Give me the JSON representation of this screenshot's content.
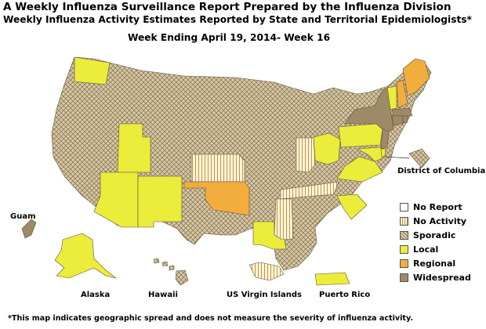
{
  "header": {
    "title": "A Weekly Influenza Surveillance Report Prepared by the Influenza Division",
    "subtitle": "Weekly Influenza Activity Estimates Reported by State and Territorial Epidemiologists*",
    "week": "Week Ending April 19, 2014- Week 16"
  },
  "labels": {
    "dc": "District of Columbia",
    "guam": "Guam",
    "alaska": "Alaska",
    "hawaii": "Hawaii",
    "virgin_islands": "US Virgin Islands",
    "puerto_rico": "Puerto Rico"
  },
  "legend": [
    {
      "label": "No Report",
      "key": "noreport"
    },
    {
      "label": "No Activity",
      "key": "noactivity"
    },
    {
      "label": "Sporadic",
      "key": "sporadic"
    },
    {
      "label": "Local",
      "key": "local"
    },
    {
      "label": "Regional",
      "key": "regional"
    },
    {
      "label": "Widespread",
      "key": "widespread"
    }
  ],
  "colors": {
    "local": "#ecec3a",
    "regional": "#f2ad3c",
    "widespread": "#9e8a67",
    "sporadic_bg": "#d9c9a6",
    "sporadic_line": "#8c7a58",
    "noactivity_bg": "#fff6d6",
    "noactivity_line": "#c5904a"
  },
  "footnote": "*This map indicates geographic spread and does not measure the severity of influenza activity.",
  "activity": {
    "Washington": "local",
    "Utah": "local",
    "Arizona": "local",
    "New Mexico": "local",
    "Oklahoma": "regional",
    "Kansas": "noactivity",
    "Louisiana": "local",
    "Mississippi": "noactivity",
    "Tennessee": "noactivity",
    "Indiana": "noactivity",
    "Ohio": "local",
    "Virginia": "local",
    "South Carolina": "local",
    "Pennsylvania": "local",
    "Maryland": "local",
    "Delaware": "local",
    "New Jersey": "widespread",
    "New York": "widespread",
    "Connecticut": "widespread",
    "Rhode Island": "widespread",
    "Massachusetts": "widespread",
    "Vermont": "local",
    "New Hampshire": "regional",
    "Maine": "regional",
    "District of Columbia": "sporadic",
    "Alaska": "local",
    "Hawaii": "sporadic",
    "Guam": "widespread",
    "US Virgin Islands": "noactivity",
    "Puerto Rico": "local",
    "Oregon": "sporadic",
    "California": "sporadic",
    "Nevada": "sporadic",
    "Idaho": "sporadic",
    "Montana": "sporadic",
    "Wyoming": "sporadic",
    "Colorado": "sporadic",
    "North Dakota": "sporadic",
    "South Dakota": "sporadic",
    "Nebraska": "sporadic",
    "Texas": "sporadic",
    "Minnesota": "sporadic",
    "Iowa": "sporadic",
    "Missouri": "sporadic",
    "Arkansas": "sporadic",
    "Wisconsin": "sporadic",
    "Illinois": "sporadic",
    "Michigan": "sporadic",
    "Kentucky": "sporadic",
    "Alabama": "sporadic",
    "Georgia": "sporadic",
    "Florida": "sporadic",
    "North Carolina": "sporadic",
    "West Virginia": "sporadic"
  }
}
